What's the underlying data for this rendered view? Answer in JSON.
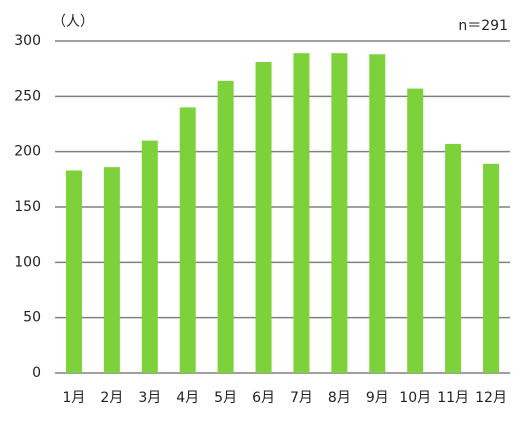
{
  "chart_data": {
    "type": "bar",
    "y_unit": "（人）",
    "note": "n＝291",
    "categories": [
      "1月",
      "2月",
      "3月",
      "4月",
      "5月",
      "6月",
      "7月",
      "8月",
      "9月",
      "10月",
      "11月",
      "12月"
    ],
    "values": [
      183,
      186,
      210,
      240,
      264,
      281,
      289,
      289,
      288,
      257,
      207,
      189
    ],
    "color": "#7dd13a",
    "ylim": [
      0,
      300
    ],
    "yticks": [
      0,
      50,
      100,
      150,
      200,
      250,
      300
    ],
    "grid": true
  }
}
